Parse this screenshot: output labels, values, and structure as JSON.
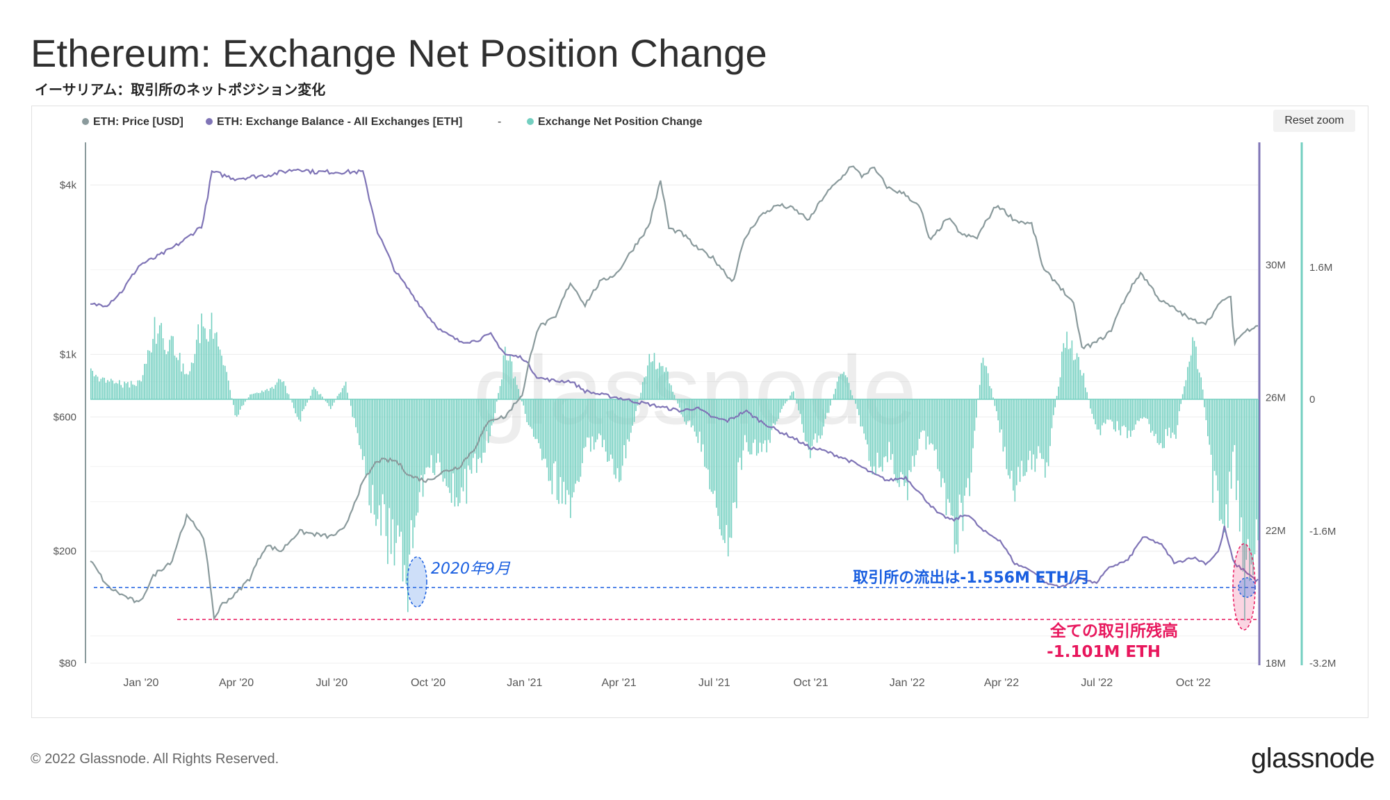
{
  "header": {
    "title": "Ethereum: Exchange Net Position Change",
    "subtitle": "イーサリアム：取引所のネットポジション変化"
  },
  "toolbar": {
    "reset_label": "Reset zoom"
  },
  "legend": [
    {
      "label": "ETH: Price [USD]",
      "color": "#8a9a9c"
    },
    {
      "label": "ETH: Exchange Balance - All Exchanges [ETH]",
      "color": "#7f74b6"
    },
    {
      "label": "Exchange Net Position Change",
      "color": "#73cfc0"
    }
  ],
  "legend_separator": "-",
  "watermark": "glassnode",
  "footer": {
    "copyright": "© 2022 Glassnode. All Rights Reserved.",
    "brand": "glassnode"
  },
  "annotations": {
    "sep2020_label": "2020年9月",
    "outflow_label": "取引所の流出は-1.556M ETH/月",
    "balance_label_line1": "全ての取引所残高",
    "balance_label_line2": "-1.101M ETH"
  },
  "colors": {
    "price": "#8a9a9c",
    "balance": "#7f74b6",
    "netpos": "#73cfc0",
    "blue_annot": "#1a5fe0",
    "red_annot": "#e8175d"
  },
  "chart_data": {
    "type": "line",
    "title": "Ethereum: Exchange Net Position Change",
    "x_ticks": [
      "Jan '20",
      "Apr '20",
      "Jul '20",
      "Oct '20",
      "Jan '21",
      "Apr '21",
      "Jul '21",
      "Oct '21",
      "Jan '22",
      "Apr '22",
      "Jul '22",
      "Oct '22"
    ],
    "x_range": [
      "2019-11-15",
      "2022-12-03"
    ],
    "y_price": {
      "scale": "log",
      "ticks": [
        "$80",
        "$200",
        "$600",
        "$1k",
        "$4k"
      ],
      "range": [
        80,
        6000
      ]
    },
    "y_balance": {
      "ticks": [
        "18M",
        "22M",
        "26M",
        "30M"
      ],
      "range": [
        18000000,
        33900000
      ]
    },
    "y_netpos": {
      "ticks": [
        "-3.2M",
        "-1.6M",
        "0",
        "1.6M"
      ],
      "range": [
        -3200000,
        3200000
      ]
    },
    "series": [
      {
        "name": "ETH: Price [USD]",
        "axis": "price",
        "x": [
          "2019-11-15",
          "2019-12-01",
          "2019-12-15",
          "2020-01-01",
          "2020-01-15",
          "2020-02-01",
          "2020-02-15",
          "2020-03-01",
          "2020-03-12",
          "2020-03-20",
          "2020-04-01",
          "2020-04-15",
          "2020-05-01",
          "2020-05-15",
          "2020-06-01",
          "2020-06-15",
          "2020-07-01",
          "2020-07-15",
          "2020-08-01",
          "2020-08-15",
          "2020-09-01",
          "2020-09-15",
          "2020-10-01",
          "2020-10-15",
          "2020-11-01",
          "2020-11-15",
          "2020-12-01",
          "2020-12-15",
          "2021-01-01",
          "2021-01-15",
          "2021-02-01",
          "2021-02-15",
          "2021-03-01",
          "2021-03-15",
          "2021-04-01",
          "2021-04-15",
          "2021-05-01",
          "2021-05-12",
          "2021-05-20",
          "2021-06-01",
          "2021-06-15",
          "2021-07-01",
          "2021-07-20",
          "2021-08-01",
          "2021-08-15",
          "2021-09-01",
          "2021-09-15",
          "2021-10-01",
          "2021-10-15",
          "2021-11-01",
          "2021-11-10",
          "2021-11-20",
          "2021-12-01",
          "2021-12-15",
          "2022-01-01",
          "2022-01-15",
          "2022-01-24",
          "2022-02-10",
          "2022-02-24",
          "2022-03-10",
          "2022-03-29",
          "2022-04-15",
          "2022-05-01",
          "2022-05-12",
          "2022-05-25",
          "2022-06-10",
          "2022-06-18",
          "2022-07-01",
          "2022-07-15",
          "2022-08-01",
          "2022-08-13",
          "2022-09-01",
          "2022-09-15",
          "2022-10-01",
          "2022-10-15",
          "2022-11-01",
          "2022-11-07",
          "2022-11-10",
          "2022-11-20",
          "2022-12-01"
        ],
        "values": [
          185,
          150,
          140,
          130,
          165,
          185,
          265,
          230,
          115,
          130,
          140,
          160,
          210,
          200,
          235,
          230,
          225,
          240,
          350,
          420,
          420,
          370,
          355,
          380,
          400,
          460,
          590,
          600,
          730,
          1250,
          1350,
          1800,
          1500,
          1800,
          1950,
          2350,
          2850,
          4100,
          2800,
          2700,
          2400,
          2200,
          1800,
          2600,
          3100,
          3400,
          3300,
          3000,
          3650,
          4250,
          4700,
          4300,
          4600,
          3900,
          3700,
          3300,
          2500,
          3050,
          2650,
          2600,
          3400,
          3000,
          2900,
          2000,
          1800,
          1500,
          1050,
          1100,
          1200,
          1650,
          1950,
          1550,
          1450,
          1320,
          1300,
          1580,
          1580,
          1100,
          1200,
          1270
        ]
      },
      {
        "name": "ETH: Exchange Balance - All Exchanges [ETH]",
        "axis": "balance",
        "x": [
          "2019-11-15",
          "2019-12-01",
          "2019-12-15",
          "2020-01-01",
          "2020-01-15",
          "2020-02-01",
          "2020-02-15",
          "2020-03-01",
          "2020-03-10",
          "2020-04-01",
          "2020-05-01",
          "2020-06-01",
          "2020-06-15",
          "2020-07-01",
          "2020-08-01",
          "2020-08-15",
          "2020-09-01",
          "2020-09-15",
          "2020-10-01",
          "2020-10-15",
          "2020-11-01",
          "2020-11-15",
          "2020-12-01",
          "2020-12-15",
          "2021-01-01",
          "2021-01-15",
          "2021-02-01",
          "2021-02-15",
          "2021-03-01",
          "2021-03-15",
          "2021-04-01",
          "2021-04-15",
          "2021-05-01",
          "2021-05-15",
          "2021-06-01",
          "2021-06-15",
          "2021-07-01",
          "2021-07-15",
          "2021-08-01",
          "2021-08-15",
          "2021-09-01",
          "2021-09-15",
          "2021-10-01",
          "2021-10-15",
          "2021-11-01",
          "2021-11-15",
          "2021-12-01",
          "2021-12-15",
          "2022-01-01",
          "2022-01-15",
          "2022-02-01",
          "2022-02-15",
          "2022-03-01",
          "2022-03-15",
          "2022-04-01",
          "2022-04-15",
          "2022-05-01",
          "2022-05-15",
          "2022-06-01",
          "2022-06-15",
          "2022-07-01",
          "2022-07-15",
          "2022-08-01",
          "2022-08-15",
          "2022-09-01",
          "2022-09-15",
          "2022-10-01",
          "2022-10-15",
          "2022-10-27",
          "2022-11-01",
          "2022-11-10",
          "2022-11-20",
          "2022-12-01"
        ],
        "values": [
          28.8,
          28.8,
          29.2,
          30.0,
          30.2,
          30.5,
          30.8,
          31.2,
          32.8,
          32.6,
          32.7,
          32.9,
          32.8,
          32.8,
          32.8,
          31.0,
          29.8,
          29.2,
          28.5,
          28.0,
          27.7,
          27.7,
          27.9,
          27.3,
          27.2,
          26.6,
          26.5,
          26.5,
          26.2,
          26.1,
          26.0,
          25.9,
          25.8,
          25.7,
          25.6,
          25.7,
          25.4,
          25.3,
          25.6,
          25.3,
          25.0,
          24.8,
          24.5,
          24.4,
          24.2,
          24.0,
          23.7,
          23.5,
          23.6,
          23.1,
          22.5,
          22.3,
          22.5,
          22.0,
          21.7,
          21.0,
          20.8,
          20.4,
          20.3,
          20.6,
          20.4,
          20.9,
          21.1,
          21.8,
          21.6,
          21.0,
          21.2,
          21.0,
          21.4,
          22.1,
          21.0,
          20.8,
          20.5
        ]
      },
      {
        "name": "Exchange Net Position Change",
        "axis": "netpos",
        "type": "bar",
        "x": [
          "2019-11-15",
          "2019-12-01",
          "2019-12-15",
          "2020-01-01",
          "2020-01-15",
          "2020-02-01",
          "2020-02-15",
          "2020-03-01",
          "2020-03-15",
          "2020-04-01",
          "2020-04-15",
          "2020-05-01",
          "2020-05-15",
          "2020-06-01",
          "2020-06-15",
          "2020-07-01",
          "2020-07-15",
          "2020-08-01",
          "2020-08-15",
          "2020-09-01",
          "2020-09-10",
          "2020-09-20",
          "2020-10-01",
          "2020-10-15",
          "2020-11-01",
          "2020-11-15",
          "2020-12-01",
          "2020-12-15",
          "2021-01-01",
          "2021-01-15",
          "2021-02-01",
          "2021-02-15",
          "2021-03-01",
          "2021-03-15",
          "2021-04-01",
          "2021-04-15",
          "2021-05-01",
          "2021-05-15",
          "2021-06-01",
          "2021-06-15",
          "2021-07-01",
          "2021-07-15",
          "2021-08-01",
          "2021-08-15",
          "2021-09-01",
          "2021-09-15",
          "2021-10-01",
          "2021-10-15",
          "2021-11-01",
          "2021-11-15",
          "2021-12-01",
          "2021-12-15",
          "2022-01-01",
          "2022-01-15",
          "2022-02-01",
          "2022-02-15",
          "2022-03-01",
          "2022-03-15",
          "2022-04-01",
          "2022-04-15",
          "2022-05-01",
          "2022-05-15",
          "2022-06-01",
          "2022-06-15",
          "2022-07-01",
          "2022-07-15",
          "2022-08-01",
          "2022-08-15",
          "2022-09-01",
          "2022-09-15",
          "2022-10-01",
          "2022-10-10",
          "2022-10-20",
          "2022-11-01",
          "2022-11-10",
          "2022-11-20",
          "2022-12-01"
        ],
        "values": [
          300000,
          250000,
          180000,
          200000,
          850000,
          650000,
          300000,
          1000000,
          800000,
          -200000,
          50000,
          100000,
          250000,
          -250000,
          150000,
          -100000,
          200000,
          -800000,
          -1400000,
          -1900000,
          -2300000,
          -1500000,
          -700000,
          -800000,
          -1200000,
          -800000,
          -400000,
          600000,
          -100000,
          -700000,
          -1000000,
          -1200000,
          -600000,
          -500000,
          -900000,
          -300000,
          500000,
          400000,
          -200000,
          -400000,
          -1100000,
          -1600000,
          -500000,
          -700000,
          -200000,
          100000,
          -600000,
          -300000,
          400000,
          -100000,
          -900000,
          -600000,
          -1300000,
          -400000,
          -800000,
          -1700000,
          -1200000,
          600000,
          -400000,
          -1100000,
          -700000,
          -800000,
          700000,
          500000,
          -400000,
          -300000,
          -400000,
          -200000,
          -500000,
          -400000,
          700000,
          200000,
          -1000000,
          -1500000,
          -700000,
          -2300000,
          -1500000
        ]
      }
    ]
  }
}
